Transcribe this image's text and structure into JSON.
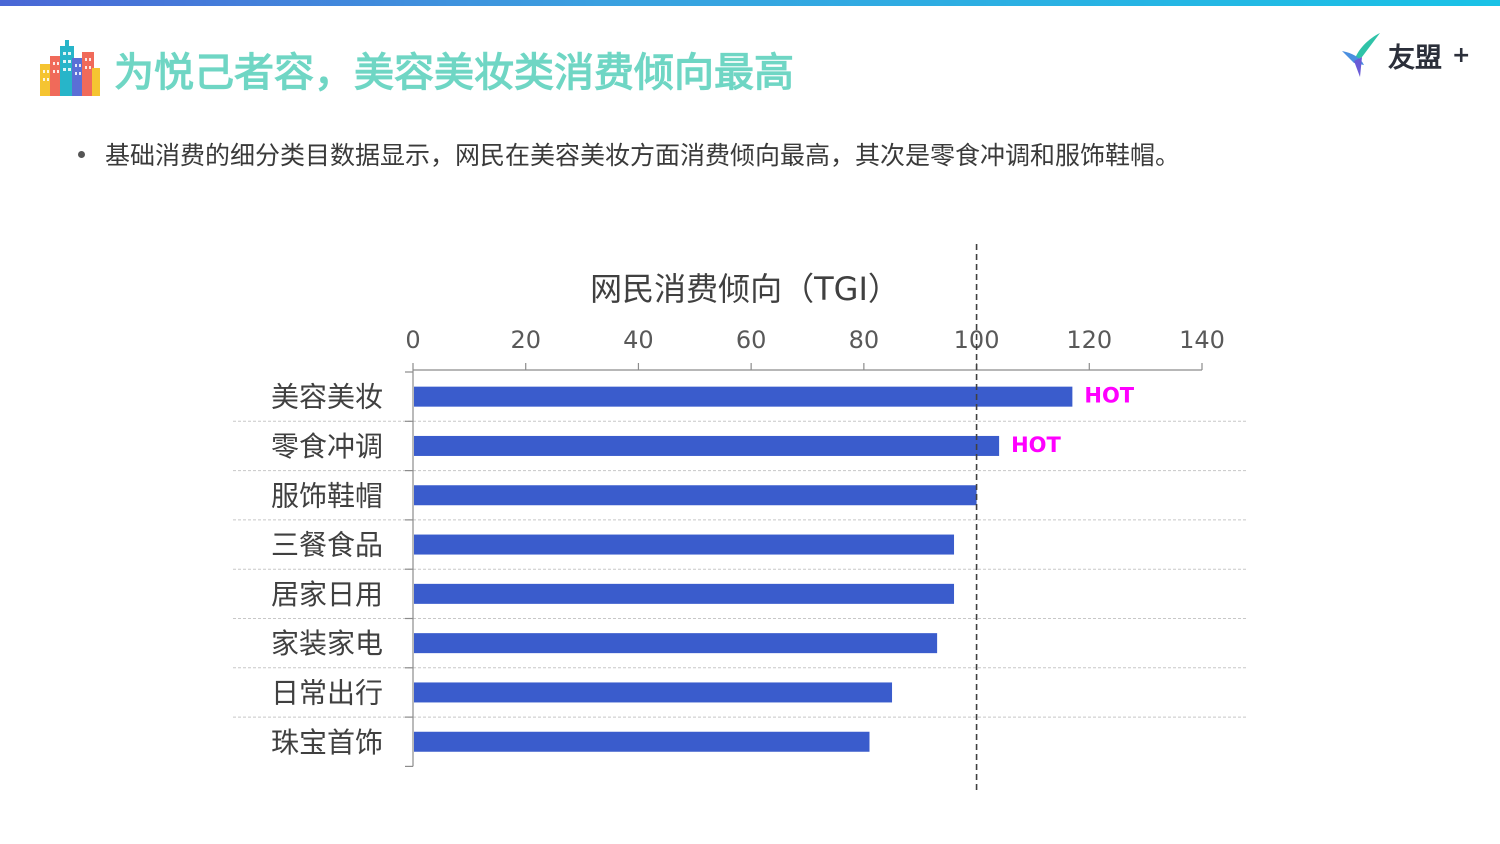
{
  "page": {
    "title": "为悦己者容，美容美妆类消费倾向最高",
    "subtitle": "基础消费的细分类目数据显示，网民在美容美妆方面消费倾向最高，其次是零食冲调和服饰鞋帽。"
  },
  "logo": {
    "text": "友盟",
    "plus": "+"
  },
  "colors": {
    "bar": "#3a5ccc",
    "hot": "#ff00ff",
    "title": "#6fd6c4"
  },
  "chart_data": {
    "type": "bar",
    "orientation": "horizontal",
    "title": "网民消费倾向（TGI）",
    "categories": [
      "美容美妆",
      "零食冲调",
      "服饰鞋帽",
      "三餐食品",
      "居家日用",
      "家装家电",
      "日常出行",
      "珠宝首饰"
    ],
    "values": [
      117,
      104,
      100,
      96,
      96,
      93,
      85,
      81
    ],
    "xlim": [
      0,
      140
    ],
    "xticks": [
      0,
      20,
      40,
      60,
      80,
      100,
      120,
      140
    ],
    "axis_position": "top",
    "reference_line": 100,
    "annotations": [
      {
        "category": "美容美妆",
        "text": "HOT"
      },
      {
        "category": "零食冲调",
        "text": "HOT"
      }
    ],
    "gridlines": "horizontal dashed between categories",
    "legend": "none"
  }
}
